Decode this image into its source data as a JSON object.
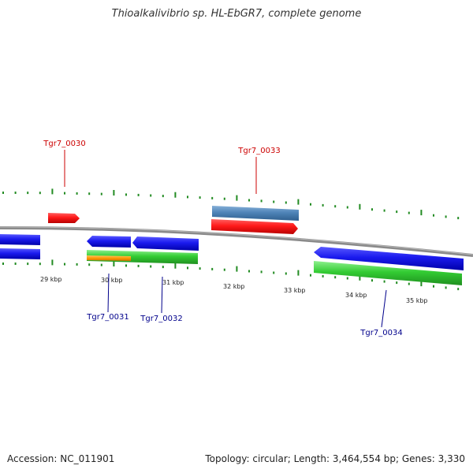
{
  "title": "Thioalkalivibrio sp. HL-EbGR7, complete genome",
  "footer": {
    "accession": "Accession: NC_011901",
    "summary": "Topology: circular; Length: 3,464,554 bp; Genes: 3,330"
  },
  "colors": {
    "backbone": "#808080",
    "tick": "#228b22",
    "label_top": "#cc0000",
    "label_bottom": "#00008b",
    "gene_red": "#ff1a1a",
    "gene_blue": "#1a1aee",
    "gene_green": "#33cc33",
    "gene_steelblue": "#4f84b8",
    "gene_orange": "#ff9900"
  },
  "tick_labels": [
    "29 kbp",
    "30 kbp",
    "31 kbp",
    "32 kbp",
    "33 kbp",
    "34 kbp",
    "35 kbp"
  ],
  "gene_labels": {
    "tgr7_0030": "Tgr7_0030",
    "tgr7_0031": "Tgr7_0031",
    "tgr7_0032": "Tgr7_0032",
    "tgr7_0033": "Tgr7_0033",
    "tgr7_0034": "Tgr7_0034"
  }
}
